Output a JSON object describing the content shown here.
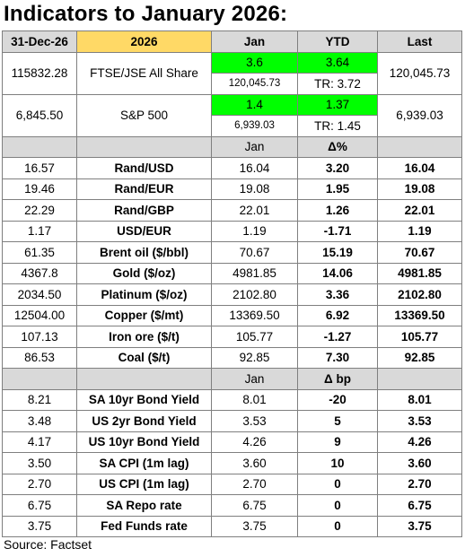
{
  "title": "Indicators to January 2026:",
  "header": {
    "date": "31-Dec-26",
    "year": "2026",
    "col_jan": "Jan",
    "col_ytd": "YTD",
    "col_last": "Last"
  },
  "indices": [
    {
      "prev": "115832.28",
      "name": "FTSE/JSE All Share",
      "jan": "3.6",
      "ytd": "3.64",
      "jan_sub": "120,045.73",
      "ytd_sub": "TR: 3.72",
      "last": "120,045.73"
    },
    {
      "prev": "6,845.50",
      "name": "S&P 500",
      "jan": "1.4",
      "ytd": "1.37",
      "jan_sub": "6,939.03",
      "ytd_sub": "TR: 1.45",
      "last": "6,939.03"
    }
  ],
  "section2": {
    "col_jan": "Jan",
    "col_delta": "Δ%",
    "rows": [
      {
        "prev": "16.57",
        "name": "Rand/USD",
        "jan": "16.04",
        "delta": "3.20",
        "last": "16.04"
      },
      {
        "prev": "19.46",
        "name": "Rand/EUR",
        "jan": "19.08",
        "delta": "1.95",
        "last": "19.08"
      },
      {
        "prev": "22.29",
        "name": "Rand/GBP",
        "jan": "22.01",
        "delta": "1.26",
        "last": "22.01"
      },
      {
        "prev": "1.17",
        "name": "USD/EUR",
        "jan": "1.19",
        "delta": "-1.71",
        "last": "1.19"
      },
      {
        "prev": "61.35",
        "name": "Brent oil ($/bbl)",
        "jan": "70.67",
        "delta": "15.19",
        "last": "70.67"
      },
      {
        "prev": "4367.8",
        "name": "Gold ($/oz)",
        "jan": "4981.85",
        "delta": "14.06",
        "last": "4981.85"
      },
      {
        "prev": "2034.50",
        "name": "Platinum ($/oz)",
        "jan": "2102.80",
        "delta": "3.36",
        "last": "2102.80"
      },
      {
        "prev": "12504.00",
        "name": "Copper ($/mt)",
        "jan": "13369.50",
        "delta": "6.92",
        "last": "13369.50"
      },
      {
        "prev": "107.13",
        "name": "Iron ore ($/t)",
        "jan": "105.77",
        "delta": "-1.27",
        "last": "105.77"
      },
      {
        "prev": "86.53",
        "name": "Coal ($/t)",
        "jan": "92.85",
        "delta": "7.30",
        "last": "92.85"
      }
    ]
  },
  "section3": {
    "col_jan": "Jan",
    "col_delta": "Δ bp",
    "rows": [
      {
        "prev": "8.21",
        "name": "SA 10yr Bond Yield",
        "jan": "8.01",
        "delta": "-20",
        "last": "8.01"
      },
      {
        "prev": "3.48",
        "name": "US 2yr Bond Yield",
        "jan": "3.53",
        "delta": "5",
        "last": "3.53"
      },
      {
        "prev": "4.17",
        "name": "US 10yr Bond Yield",
        "jan": "4.26",
        "delta": "9",
        "last": "4.26"
      },
      {
        "prev": "3.50",
        "name": "SA CPI (1m lag)",
        "jan": "3.60",
        "delta": "10",
        "last": "3.60"
      },
      {
        "prev": "2.70",
        "name": "US CPI (1m lag)",
        "jan": "2.70",
        "delta": "0",
        "last": "2.70"
      },
      {
        "prev": "6.75",
        "name": "SA Repo rate",
        "jan": "6.75",
        "delta": "0",
        "last": "6.75"
      },
      {
        "prev": "3.75",
        "name": "Fed Funds rate",
        "jan": "3.75",
        "delta": "0",
        "last": "3.75"
      }
    ]
  },
  "source": "Source: Factset",
  "colors": {
    "header_gray": "#d9d9d9",
    "year_yellow": "#ffd966",
    "highlight_green": "#00ff00",
    "border": "#7f7f7f"
  }
}
